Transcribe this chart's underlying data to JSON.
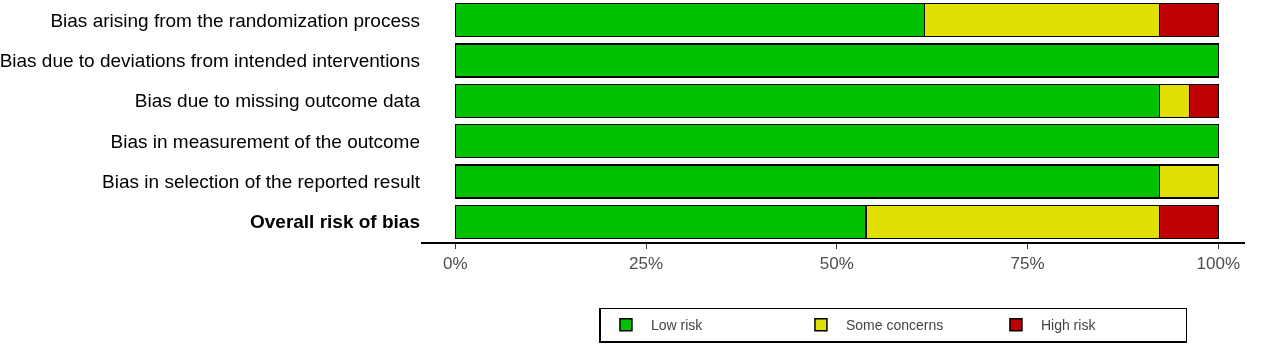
{
  "chart_data": {
    "type": "bar",
    "orientation": "horizontal",
    "stacked": true,
    "categories": [
      "Bias arising from the randomization process",
      "Bias due to deviations from intended interventions",
      "Bias due to missing outcome data",
      "Bias in measurement of the outcome",
      "Bias in selection of the reported result",
      "Overall risk of bias"
    ],
    "series": [
      {
        "name": "Low risk",
        "color": "#02c100",
        "values": [
          61.5,
          100,
          92.3,
          100,
          92.3,
          53.8
        ]
      },
      {
        "name": "Some concerns",
        "color": "#e2df07",
        "values": [
          30.8,
          null,
          3.9,
          null,
          7.7,
          38.5
        ]
      },
      {
        "name": "High risk",
        "color": "#bf0000",
        "values": [
          7.7,
          null,
          3.8,
          null,
          null,
          7.7
        ]
      }
    ],
    "xlim": [
      -4.5,
      103.5
    ],
    "xticks": [
      {
        "value": 0,
        "label": "0%"
      },
      {
        "value": 25,
        "label": "25%"
      },
      {
        "value": 50,
        "label": "50%"
      },
      {
        "value": 75,
        "label": "75%"
      },
      {
        "value": 100,
        "label": "100%"
      }
    ],
    "grid": false,
    "legend": "bottom"
  }
}
